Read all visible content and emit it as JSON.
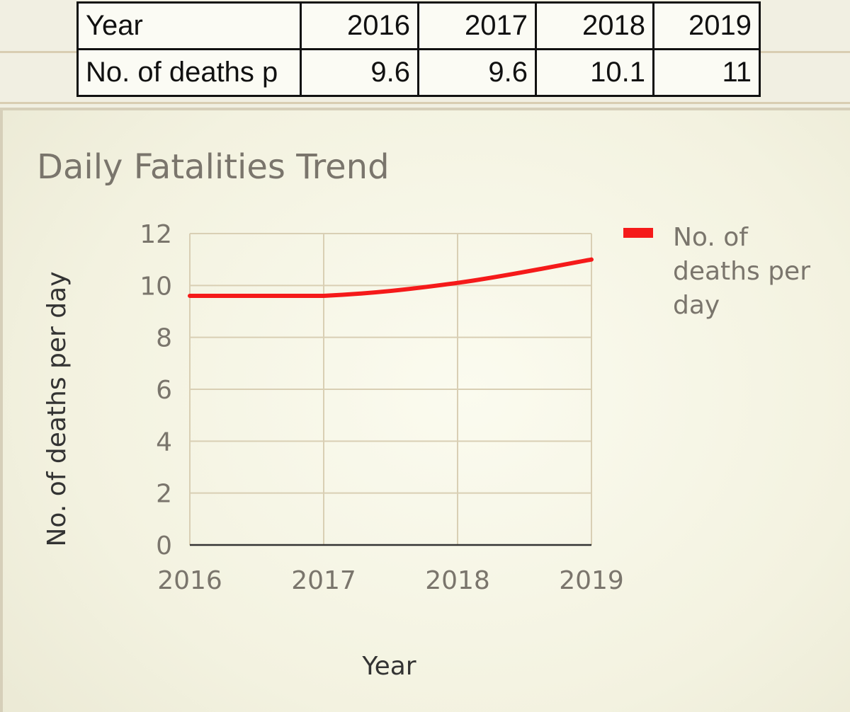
{
  "table": {
    "header_label": "Year",
    "row_label": "No. of deaths p",
    "years": [
      "2016",
      "2017",
      "2018",
      "2019"
    ],
    "values": [
      "9.6",
      "9.6",
      "10.1",
      "11"
    ]
  },
  "chart_data": {
    "type": "line",
    "title": "Daily Fatalities Trend",
    "xlabel": "Year",
    "ylabel": "No. of deaths per day",
    "categories": [
      "2016",
      "2017",
      "2018",
      "2019"
    ],
    "series": [
      {
        "name": "No. of deaths per day",
        "values": [
          9.6,
          9.6,
          10.1,
          11
        ],
        "color": "#f51a1a"
      }
    ],
    "ylim": [
      0,
      12
    ],
    "yticks": [
      "0",
      "2",
      "4",
      "6",
      "8",
      "10",
      "12"
    ],
    "grid": true,
    "legend": "right"
  },
  "colors": {
    "line": "#f51a1a",
    "grid": "#d9cfb4",
    "text": "#7a756c"
  }
}
